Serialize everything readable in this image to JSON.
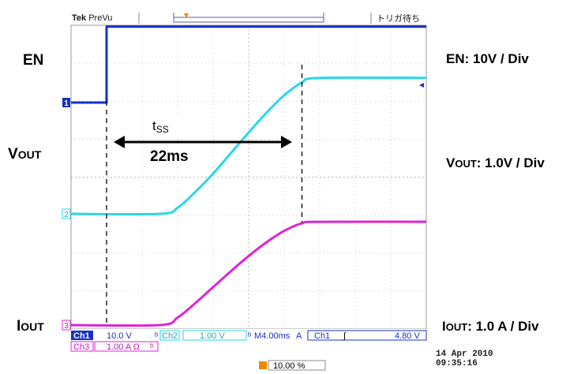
{
  "header": {
    "brand": "Tek",
    "mode": "PreVu",
    "trigger_status": "トリガ待ち"
  },
  "annotations": {
    "en": "EN",
    "vout_prefix": "V",
    "vout_suffix": "OUT",
    "iout_prefix": "I",
    "iout_suffix": "OUT",
    "tss_t": "t",
    "tss_sub": "SS",
    "tss_value": "22ms",
    "en_scale": "EN: 10V / Div",
    "vout_scale_prefix": "V",
    "vout_scale_suffix": "OUT",
    "vout_scale_value": ": 1.0V / Div",
    "iout_scale_prefix": "I",
    "iout_scale_suffix": "OUT",
    "iout_scale_value": ": 1.0 A / Div"
  },
  "channel_markers": {
    "ch1": "1",
    "ch2": "2",
    "ch3": "3",
    "trigger": "T"
  },
  "readouts": {
    "ch1_label": "Ch1",
    "ch1_value": "10.0 V",
    "ch2_label": "Ch2",
    "ch2_value": "1.00 V",
    "ch3_label": "Ch3",
    "ch3_value": "1.00 A Ω",
    "timebase": "M4.00ms",
    "trig_mode": "A",
    "trig_source": "Ch1",
    "trig_slope": "∫",
    "trig_level": "4.80 V",
    "trig_position": "10.00 %",
    "date": "14 Apr  2010",
    "time": "09:35:16"
  },
  "colors": {
    "ch1": "#1530c8",
    "ch2": "#26d9e6",
    "ch3": "#e022d6",
    "trigger": "#f08a00",
    "grid": "#b8b8b8",
    "frame": "#9a9a9a"
  },
  "chart_data": {
    "type": "line",
    "title": "",
    "xlabel": "",
    "ylabel": "",
    "x_unit": "ms",
    "xlim": [
      -4,
      36
    ],
    "grid": true,
    "series": [
      {
        "name": "EN",
        "unit": "V",
        "scale_per_div": 10,
        "x": [
          -4,
          0,
          0,
          36
        ],
        "y": [
          0,
          0,
          20,
          20
        ]
      },
      {
        "name": "VOUT",
        "unit": "V",
        "scale_per_div": 1.0,
        "x": [
          -4,
          6,
          8,
          10,
          12,
          14,
          16,
          18,
          20,
          22,
          24,
          36
        ],
        "y": [
          0,
          0,
          0.16,
          0.58,
          1.06,
          1.6,
          2.14,
          2.66,
          3.12,
          3.46,
          3.58,
          3.58
        ]
      },
      {
        "name": "IOUT",
        "unit": "A",
        "scale_per_div": 1.0,
        "x": [
          -4,
          6,
          8,
          10,
          12,
          14,
          16,
          18,
          20,
          22,
          24,
          36
        ],
        "y": [
          0,
          0,
          0.2,
          0.58,
          1.0,
          1.42,
          1.82,
          2.18,
          2.48,
          2.68,
          2.72,
          2.72
        ]
      }
    ],
    "markers": [
      {
        "x": 0,
        "label": "start"
      },
      {
        "x": 22,
        "label": "end"
      }
    ]
  }
}
